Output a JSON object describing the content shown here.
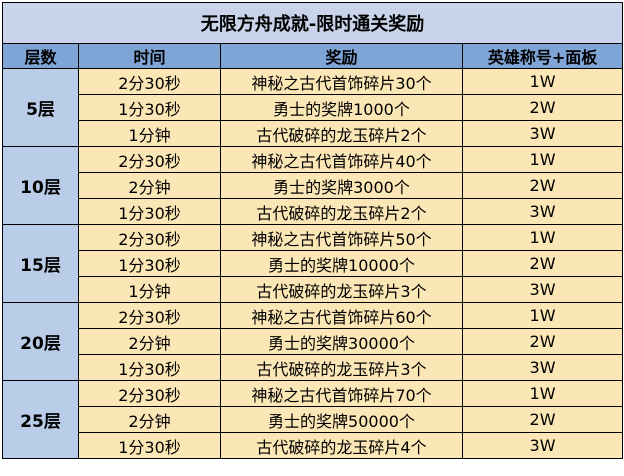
{
  "title": "无限方舟成就-限时通关奖励",
  "headers": {
    "floor": "层数",
    "time": "时间",
    "reward": "奖励",
    "hero": "英雄称号+面板"
  },
  "groups": [
    {
      "floor": "5层",
      "rows": [
        {
          "time": "2分30秒",
          "reward": "神秘之古代首饰碎片30个",
          "hero": "1W"
        },
        {
          "time": "1分30秒",
          "reward": "勇士的奖牌1000个",
          "hero": "2W"
        },
        {
          "time": "1分钟",
          "reward": "古代破碎的龙玉碎片2个",
          "hero": "3W"
        }
      ]
    },
    {
      "floor": "10层",
      "rows": [
        {
          "time": "2分30秒",
          "reward": "神秘之古代首饰碎片40个",
          "hero": "1W"
        },
        {
          "time": "2分钟",
          "reward": "勇士的奖牌3000个",
          "hero": "2W"
        },
        {
          "time": "1分30秒",
          "reward": "古代破碎的龙玉碎片2个",
          "hero": "3W"
        }
      ]
    },
    {
      "floor": "15层",
      "rows": [
        {
          "time": "2分30秒",
          "reward": "神秘之古代首饰碎片50个",
          "hero": "1W"
        },
        {
          "time": "1分30秒",
          "reward": "勇士的奖牌10000个",
          "hero": "2W"
        },
        {
          "time": "1分钟",
          "reward": "古代破碎的龙玉碎片3个",
          "hero": "3W"
        }
      ]
    },
    {
      "floor": "20层",
      "rows": [
        {
          "time": "2分30秒",
          "reward": "神秘之古代首饰碎片60个",
          "hero": "1W"
        },
        {
          "time": "2分钟",
          "reward": "勇士的奖牌30000个",
          "hero": "2W"
        },
        {
          "time": "1分30秒",
          "reward": "古代破碎的龙玉碎片3个",
          "hero": "3W"
        }
      ]
    },
    {
      "floor": "25层",
      "rows": [
        {
          "time": "2分30秒",
          "reward": "神秘之古代首饰碎片70个",
          "hero": "1W"
        },
        {
          "time": "2分钟",
          "reward": "勇士的奖牌50000个",
          "hero": "2W"
        },
        {
          "time": "1分30秒",
          "reward": "古代破碎的龙玉碎片4个",
          "hero": "3W"
        }
      ]
    }
  ],
  "colors": {
    "title_bg": "#c9d3ea",
    "header_bg": "#7fa5d6",
    "floor_bg": "#b9cde9",
    "cell_bg": "#fbe6b5"
  }
}
